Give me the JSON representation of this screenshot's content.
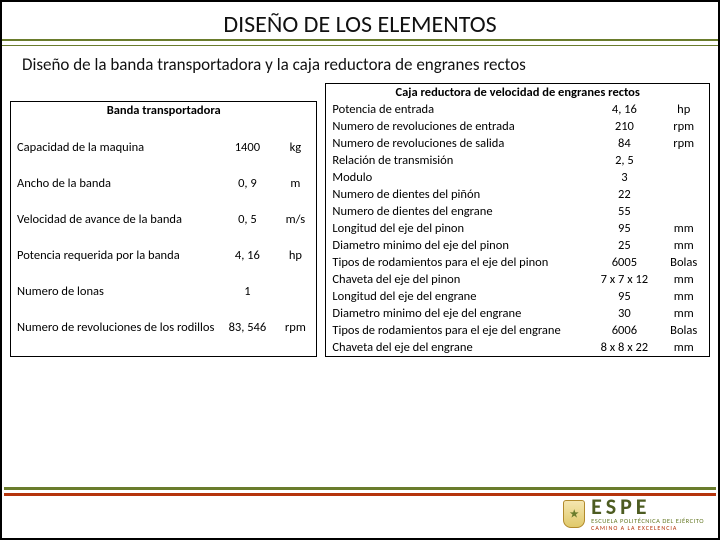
{
  "title": "DISEÑO DE LOS ELEMENTOS",
  "subtitle": "Diseño de la banda transportadora y la caja reductora de engranes rectos",
  "t1": {
    "header": "Banda transportadora",
    "rows": [
      {
        "label": "Capacidad de la maquina",
        "value": "1400",
        "unit": "kg"
      },
      {
        "label": "Ancho de la banda",
        "value": "0, 9",
        "unit": "m"
      },
      {
        "label": "Velocidad de avance de la banda",
        "value": "0, 5",
        "unit": "m/s"
      },
      {
        "label": "Potencia requerida por la banda",
        "value": "4, 16",
        "unit": "hp"
      },
      {
        "label": "Numero de lonas",
        "value": "1",
        "unit": ""
      },
      {
        "label": "Numero de revoluciones de los rodillos",
        "value": "83, 546",
        "unit": "rpm"
      }
    ]
  },
  "t2": {
    "header": "Caja reductora de velocidad de engranes rectos",
    "rows": [
      {
        "label": "Potencia de entrada",
        "value": "4, 16",
        "unit": "hp"
      },
      {
        "label": "Numero de revoluciones de entrada",
        "value": "210",
        "unit": "rpm"
      },
      {
        "label": "Numero de revoluciones de salida",
        "value": "84",
        "unit": "rpm"
      },
      {
        "label": "Relación de transmisión",
        "value": "2, 5",
        "unit": ""
      },
      {
        "label": "Modulo",
        "value": "3",
        "unit": ""
      },
      {
        "label": "Numero de dientes del piñón",
        "value": "22",
        "unit": ""
      },
      {
        "label": "Numero de dientes del engrane",
        "value": "55",
        "unit": ""
      },
      {
        "label": "Longitud del eje del pinon",
        "value": "95",
        "unit": "mm"
      },
      {
        "label": "Diametro minimo del eje del pinon",
        "value": "25",
        "unit": "mm"
      },
      {
        "label": "Tipos de rodamientos para el eje del pinon",
        "value": "6005",
        "unit": "Bolas"
      },
      {
        "label": "Chaveta del eje del pinon",
        "value": "7 x 7 x 12",
        "unit": "mm"
      },
      {
        "label": "Longitud del eje del engrane",
        "value": "95",
        "unit": "mm"
      },
      {
        "label": "Diametro minimo del eje del engrane",
        "value": "30",
        "unit": "mm"
      },
      {
        "label": "Tipos de rodamientos para el eje del engrane",
        "value": "6006",
        "unit": "Bolas"
      },
      {
        "label": "Chaveta del eje del engrane",
        "value": "8 x 8 x 22",
        "unit": "mm"
      }
    ]
  },
  "logo": {
    "top": "ESPE",
    "sub": "ESCUELA POLITÉCNICA DEL EJÉRCITO",
    "cam": "CAMINO A LA EXCELENCIA"
  }
}
